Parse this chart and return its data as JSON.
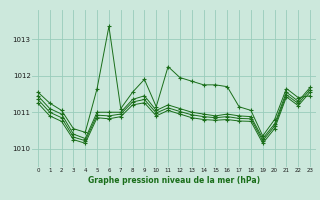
{
  "background_color": "#cce8dc",
  "grid_color": "#99ccbb",
  "line_color": "#1a6e1a",
  "title": "Graphe pression niveau de la mer (hPa)",
  "xlim": [
    -0.5,
    23.5
  ],
  "ylim": [
    1009.5,
    1013.8
  ],
  "yticks": [
    1010,
    1011,
    1012,
    1013
  ],
  "xticks": [
    0,
    1,
    2,
    3,
    4,
    5,
    6,
    7,
    8,
    9,
    10,
    11,
    12,
    13,
    14,
    15,
    16,
    17,
    18,
    19,
    20,
    21,
    22,
    23
  ],
  "series": [
    {
      "x": [
        0,
        1,
        2,
        3,
        4,
        5,
        6,
        7,
        8,
        9,
        10,
        11,
        12,
        13,
        14,
        15,
        16,
        17,
        18,
        19,
        20,
        21,
        22,
        23
      ],
      "y": [
        1011.55,
        1011.25,
        1011.05,
        1010.55,
        1010.45,
        1011.65,
        1013.35,
        1011.1,
        1011.55,
        1011.9,
        1011.15,
        1012.25,
        1011.95,
        1011.85,
        1011.75,
        1011.75,
        1011.7,
        1011.15,
        1011.05,
        1010.35,
        1010.8,
        1011.65,
        1011.4,
        1011.45
      ]
    },
    {
      "x": [
        0,
        1,
        2,
        3,
        4,
        5,
        6,
        7,
        8,
        9,
        10,
        11,
        12,
        13,
        14,
        15,
        16,
        17,
        18,
        19,
        20,
        21,
        22,
        23
      ],
      "y": [
        1011.45,
        1011.1,
        1010.95,
        1010.4,
        1010.28,
        1011.0,
        1011.0,
        1011.0,
        1011.35,
        1011.45,
        1011.05,
        1011.2,
        1011.1,
        1011.0,
        1010.95,
        1010.9,
        1010.95,
        1010.9,
        1010.88,
        1010.28,
        1010.68,
        1011.55,
        1011.3,
        1011.68
      ]
    },
    {
      "x": [
        0,
        1,
        2,
        3,
        4,
        5,
        6,
        7,
        8,
        9,
        10,
        11,
        12,
        13,
        14,
        15,
        16,
        17,
        18,
        19,
        20,
        21,
        22,
        23
      ],
      "y": [
        1011.35,
        1011.0,
        1010.85,
        1010.32,
        1010.22,
        1010.92,
        1010.9,
        1010.95,
        1011.28,
        1011.35,
        1010.98,
        1011.12,
        1011.02,
        1010.93,
        1010.88,
        1010.85,
        1010.88,
        1010.83,
        1010.82,
        1010.22,
        1010.62,
        1011.48,
        1011.24,
        1011.62
      ]
    },
    {
      "x": [
        0,
        1,
        2,
        3,
        4,
        5,
        6,
        7,
        8,
        9,
        10,
        11,
        12,
        13,
        14,
        15,
        16,
        17,
        18,
        19,
        20,
        21,
        22,
        23
      ],
      "y": [
        1011.25,
        1010.9,
        1010.75,
        1010.25,
        1010.15,
        1010.85,
        1010.82,
        1010.88,
        1011.2,
        1011.26,
        1010.9,
        1011.05,
        1010.95,
        1010.85,
        1010.8,
        1010.78,
        1010.8,
        1010.76,
        1010.75,
        1010.15,
        1010.55,
        1011.42,
        1011.18,
        1011.55
      ]
    }
  ]
}
